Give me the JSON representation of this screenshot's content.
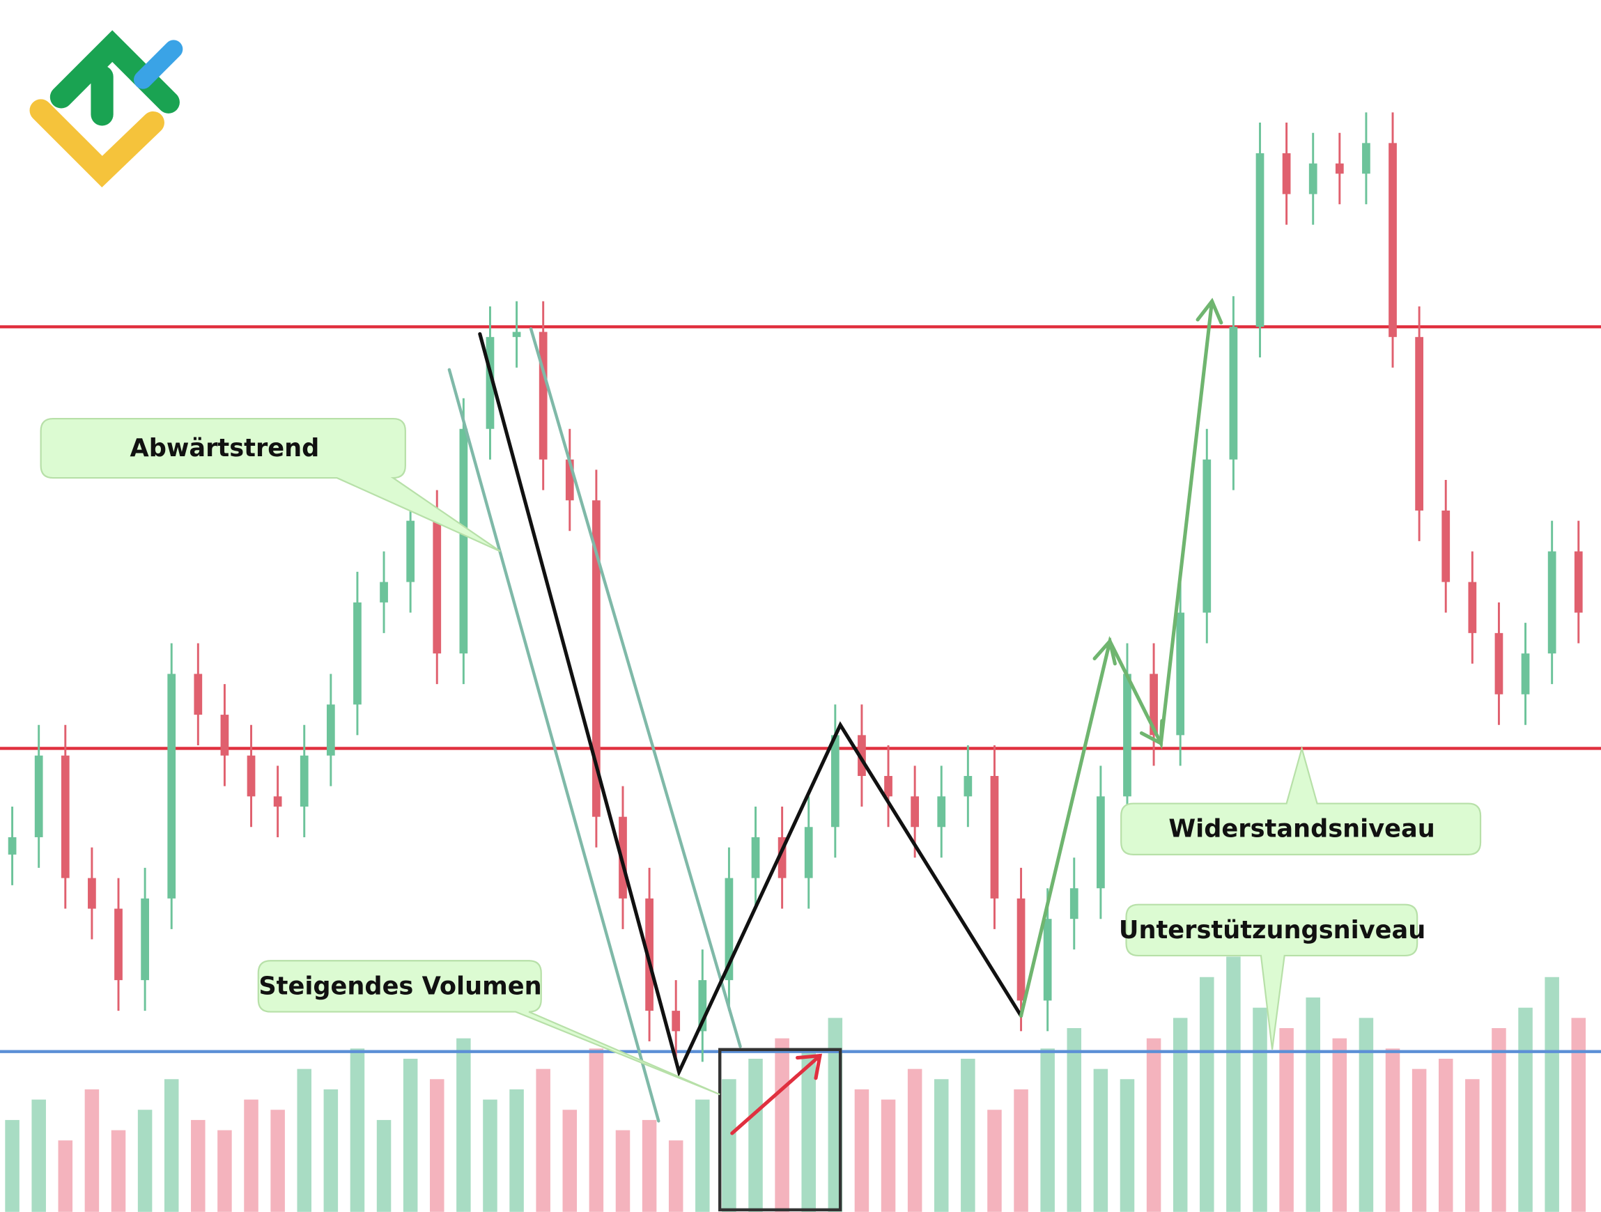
{
  "chart_data": {
    "type": "candlestick",
    "open": [
      350,
      367,
      447,
      327,
      297,
      227,
      307,
      527,
      487,
      447,
      407,
      397,
      447,
      497,
      597,
      617,
      677,
      547,
      767,
      857,
      862,
      737,
      697,
      387,
      307,
      197,
      177,
      227,
      327,
      367,
      327,
      377,
      467,
      427,
      407,
      377,
      407,
      427,
      307,
      207,
      287,
      317,
      407,
      527,
      467,
      587,
      737,
      867,
      1037,
      997,
      1027,
      1017,
      1047,
      857,
      687,
      617,
      567,
      507,
      547,
      647
    ],
    "high": [
      397,
      477,
      477,
      357,
      327,
      337,
      557,
      557,
      517,
      477,
      437,
      477,
      527,
      627,
      647,
      707,
      707,
      797,
      887,
      892,
      892,
      767,
      727,
      417,
      337,
      227,
      257,
      357,
      397,
      397,
      407,
      497,
      497,
      457,
      437,
      437,
      457,
      457,
      337,
      317,
      347,
      437,
      557,
      557,
      617,
      767,
      897,
      1067,
      1067,
      1057,
      1057,
      1077,
      1077,
      887,
      717,
      647,
      597,
      577,
      677,
      677
    ],
    "low": [
      320,
      337,
      297,
      267,
      197,
      197,
      277,
      457,
      417,
      377,
      367,
      367,
      417,
      467,
      567,
      587,
      517,
      517,
      737,
      827,
      707,
      667,
      357,
      277,
      167,
      147,
      147,
      197,
      297,
      297,
      297,
      347,
      397,
      377,
      347,
      347,
      377,
      277,
      177,
      177,
      257,
      287,
      377,
      437,
      437,
      557,
      707,
      837,
      967,
      967,
      987,
      987,
      827,
      657,
      587,
      537,
      477,
      477,
      517,
      557
    ],
    "close": [
      367,
      447,
      327,
      297,
      227,
      307,
      527,
      487,
      447,
      407,
      397,
      447,
      497,
      597,
      617,
      677,
      547,
      767,
      857,
      862,
      737,
      697,
      387,
      307,
      197,
      177,
      227,
      327,
      367,
      327,
      377,
      467,
      427,
      407,
      377,
      407,
      427,
      307,
      207,
      287,
      317,
      407,
      527,
      467,
      587,
      737,
      867,
      1037,
      997,
      1027,
      1017,
      1047,
      857,
      687,
      617,
      567,
      507,
      547,
      647,
      587
    ],
    "volume": [
      90,
      110,
      70,
      120,
      80,
      100,
      130,
      90,
      80,
      110,
      100,
      140,
      120,
      160,
      90,
      150,
      130,
      170,
      110,
      120,
      140,
      100,
      160,
      80,
      90,
      70,
      110,
      130,
      150,
      170,
      160,
      190,
      120,
      110,
      140,
      130,
      150,
      100,
      120,
      160,
      180,
      140,
      130,
      170,
      190,
      230,
      250,
      200,
      180,
      210,
      170,
      190,
      160,
      140,
      150,
      130,
      180,
      200,
      230,
      190
    ],
    "ylim": [
      0,
      1187
    ],
    "vlim": [
      0,
      400
    ],
    "up_color": "#6cc39a",
    "down_color": "#e0606e",
    "up_volume_color": "#a8dcc3",
    "down_volume_color": "#f4b3bd",
    "levels": [
      {
        "value": 867,
        "color": "#e0303f"
      },
      {
        "value": 454,
        "color": "#e0303f"
      },
      {
        "value": 157,
        "color": "#5b8fd6"
      }
    ],
    "annotations": [
      "Abwärtstrend",
      "Widerstandsniveau",
      "Unterstützungsniveau",
      "Steigendes Volumen"
    ]
  }
}
